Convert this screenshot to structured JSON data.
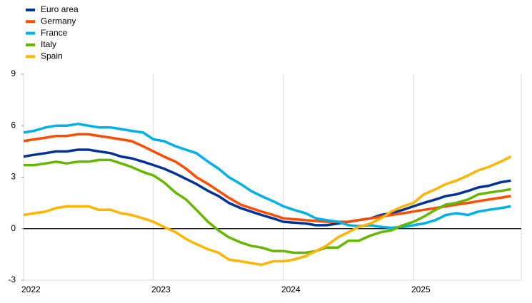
{
  "chart_data": {
    "type": "line",
    "x": [
      2022,
      2022.08,
      2022.17,
      2022.25,
      2022.33,
      2022.42,
      2022.5,
      2022.58,
      2022.67,
      2022.75,
      2022.83,
      2022.92,
      2023,
      2023.08,
      2023.17,
      2023.25,
      2023.33,
      2023.42,
      2023.5,
      2023.58,
      2023.67,
      2023.75,
      2023.83,
      2023.92,
      2024,
      2024.08,
      2024.17,
      2024.25,
      2024.33,
      2024.42,
      2024.5,
      2024.58,
      2024.67,
      2024.75,
      2024.83,
      2024.92,
      2025,
      2025.08,
      2025.17,
      2025.25,
      2025.33,
      2025.42,
      2025.5,
      2025.58,
      2025.67,
      2025.75
    ],
    "series": [
      {
        "name": "Euro area",
        "color": "#003299",
        "values": [
          4.2,
          4.3,
          4.4,
          4.5,
          4.5,
          4.6,
          4.6,
          4.5,
          4.4,
          4.2,
          4.1,
          3.9,
          3.7,
          3.5,
          3.2,
          2.9,
          2.6,
          2.2,
          1.9,
          1.5,
          1.2,
          1.0,
          0.8,
          0.6,
          0.4,
          0.35,
          0.3,
          0.2,
          0.2,
          0.3,
          0.4,
          0.5,
          0.6,
          0.8,
          0.9,
          1.1,
          1.3,
          1.5,
          1.7,
          1.9,
          2.0,
          2.2,
          2.4,
          2.5,
          2.7,
          2.8
        ]
      },
      {
        "name": "Germany",
        "color": "#ff4b00",
        "values": [
          5.1,
          5.2,
          5.3,
          5.4,
          5.4,
          5.5,
          5.5,
          5.4,
          5.3,
          5.2,
          5.1,
          4.8,
          4.5,
          4.2,
          3.9,
          3.5,
          3.0,
          2.6,
          2.2,
          1.8,
          1.4,
          1.2,
          1.0,
          0.8,
          0.6,
          0.55,
          0.5,
          0.45,
          0.4,
          0.4,
          0.4,
          0.5,
          0.6,
          0.7,
          0.8,
          0.9,
          1.0,
          1.1,
          1.2,
          1.3,
          1.4,
          1.5,
          1.6,
          1.7,
          1.8,
          1.9
        ]
      },
      {
        "name": "France",
        "color": "#00b1ea",
        "values": [
          5.6,
          5.7,
          5.9,
          6.0,
          6.0,
          6.1,
          6.0,
          5.9,
          5.9,
          5.8,
          5.7,
          5.6,
          5.2,
          5.1,
          4.8,
          4.6,
          4.4,
          3.9,
          3.5,
          3.0,
          2.6,
          2.2,
          1.9,
          1.6,
          1.3,
          1.1,
          0.9,
          0.6,
          0.5,
          0.4,
          0.2,
          0.15,
          0.2,
          0.1,
          0.05,
          0.1,
          0.2,
          0.3,
          0.5,
          0.8,
          0.9,
          0.8,
          1.0,
          1.1,
          1.2,
          1.3
        ]
      },
      {
        "name": "Italy",
        "color": "#65b800",
        "values": [
          3.7,
          3.7,
          3.8,
          3.9,
          3.8,
          3.9,
          3.9,
          4.0,
          4.0,
          3.8,
          3.6,
          3.3,
          3.1,
          2.7,
          2.1,
          1.7,
          1.1,
          0.4,
          -0.1,
          -0.5,
          -0.8,
          -1.0,
          -1.1,
          -1.3,
          -1.3,
          -1.4,
          -1.4,
          -1.3,
          -1.1,
          -1.1,
          -0.7,
          -0.7,
          -0.4,
          -0.2,
          -0.1,
          0.2,
          0.4,
          0.7,
          1.1,
          1.4,
          1.5,
          1.7,
          2.0,
          2.1,
          2.2,
          2.3
        ]
      },
      {
        "name": "Spain",
        "color": "#ffb400",
        "values": [
          0.8,
          0.9,
          1.0,
          1.2,
          1.3,
          1.3,
          1.3,
          1.1,
          1.1,
          0.9,
          0.8,
          0.6,
          0.4,
          0.1,
          -0.2,
          -0.6,
          -0.9,
          -1.2,
          -1.4,
          -1.8,
          -1.9,
          -2.0,
          -2.1,
          -1.9,
          -1.9,
          -1.8,
          -1.6,
          -1.3,
          -1.0,
          -0.5,
          -0.2,
          0.1,
          0.3,
          0.6,
          1.0,
          1.3,
          1.5,
          2.0,
          2.3,
          2.6,
          2.8,
          3.1,
          3.4,
          3.6,
          3.9,
          4.2
        ]
      }
    ],
    "xlim": [
      2022,
      2025.83
    ],
    "xticks": [
      2022,
      2023,
      2024,
      2025
    ],
    "ylim": [
      -3,
      9
    ],
    "yticks": [
      -3,
      0,
      3,
      6,
      9
    ],
    "grid": true,
    "legend": "top-left"
  }
}
